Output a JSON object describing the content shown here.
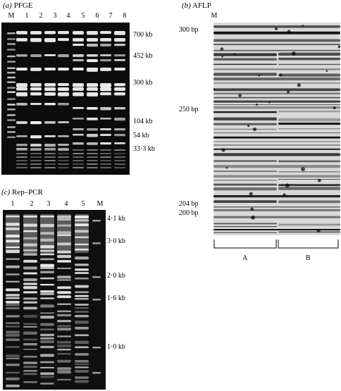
{
  "panel_a": {
    "letter": "(a)",
    "title": "PFGE",
    "lanes": [
      "M",
      "1",
      "2",
      "3",
      "4",
      "5",
      "6",
      "7",
      "8"
    ],
    "markers": [
      "700 kb",
      "452 kb",
      "300 kb",
      "104 kb",
      "54 kb",
      "33·3 kb"
    ]
  },
  "panel_b": {
    "letter": "(b)",
    "title": "AFLP",
    "lane": "M",
    "markers": [
      "300 bp",
      "250 bp",
      "204 bp",
      "200 bp"
    ],
    "groups": [
      "A",
      "B"
    ]
  },
  "panel_c": {
    "letter": "(c)",
    "title": "Rep–PCR",
    "lanes": [
      "1",
      "2",
      "3",
      "4",
      "5",
      "M"
    ],
    "markers": [
      "4·1 kb",
      "3·0 kb",
      "2·0 kb",
      "1·6 kb",
      "1·0 kb"
    ]
  }
}
